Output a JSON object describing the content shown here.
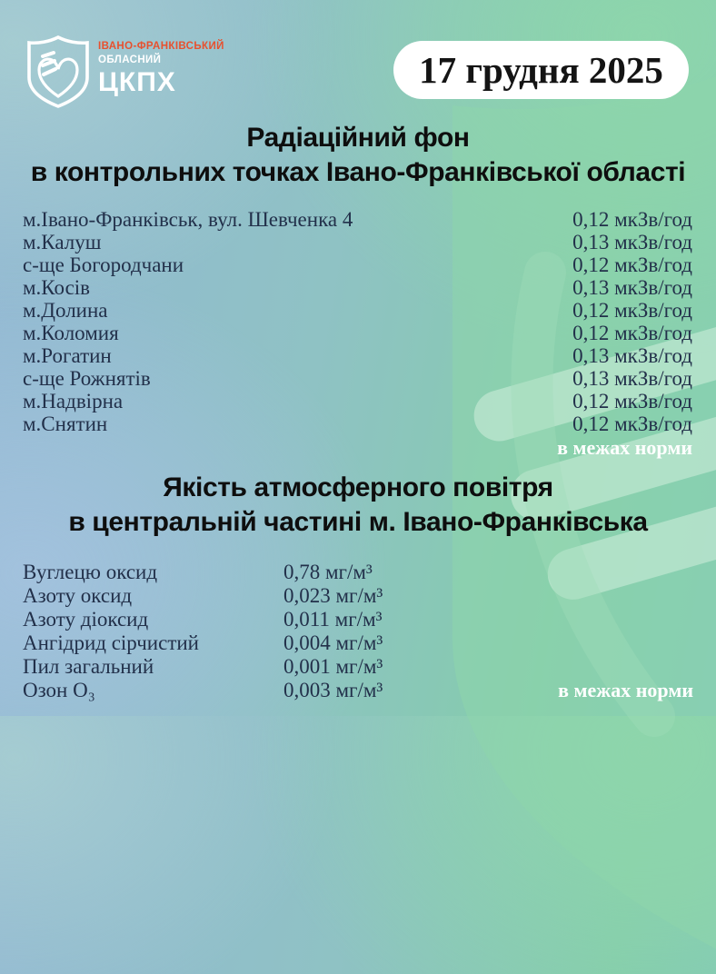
{
  "colors": {
    "accent_orange": "#e8502e",
    "text_dark": "#22304a",
    "status_white": "#ffffff",
    "bg_blue": "#93b8d4",
    "bg_green": "#84ccac"
  },
  "header": {
    "logo": {
      "org_line1": "ІВАНО-ФРАНКІВСЬКИЙ",
      "org_line2": "ОБЛАСНИЙ",
      "org_line3": "ЦКПХ",
      "icon": "shield-heart-logo"
    },
    "date_badge": "17 грудня 2025"
  },
  "radiation": {
    "title_line1": "Радіаційний фон",
    "title_line2": "в контрольних точках Івано-Франківської області",
    "rows": [
      {
        "location": "м.Івано-Франківськ, вул. Шевченка 4",
        "value": "0,12 мкЗв/год"
      },
      {
        "location": "м.Калуш",
        "value": "0,13 мкЗв/год"
      },
      {
        "location": "с-ще Богородчани",
        "value": "0,12 мкЗв/год"
      },
      {
        "location": "м.Косів",
        "value": "0,13 мкЗв/год"
      },
      {
        "location": "м.Долина",
        "value": "0,12 мкЗв/год"
      },
      {
        "location": "м.Коломия",
        "value": "0,12 мкЗв/год"
      },
      {
        "location": "м.Рогатин",
        "value": "0,13 мкЗв/год"
      },
      {
        "location": "с-ще Рожнятів",
        "value": "0,13 мкЗв/год"
      },
      {
        "location": "м.Надвірна",
        "value": "0,12 мкЗв/год"
      },
      {
        "location": "м.Снятин",
        "value": "0,12 мкЗв/год"
      }
    ],
    "status": "в межах норми"
  },
  "air_quality": {
    "title_line1": "Якість атмосферного повітря",
    "title_line2": "в центральній частині м. Івано-Франківська",
    "rows": [
      {
        "substance": "Вуглецю оксид",
        "value": "0,78 мг/м³"
      },
      {
        "substance": "Азоту оксид",
        "value": "0,023 мг/м³"
      },
      {
        "substance": "Азоту діоксид",
        "value": "0,011 мг/м³"
      },
      {
        "substance": "Ангідрид сірчистий",
        "value": "0,004 мг/м³"
      },
      {
        "substance": "Пил загальний",
        "value": "0,001 мг/м³"
      },
      {
        "substance": "Озон О₃",
        "value": "0,003 мг/м³"
      }
    ],
    "status": "в межах норми"
  }
}
